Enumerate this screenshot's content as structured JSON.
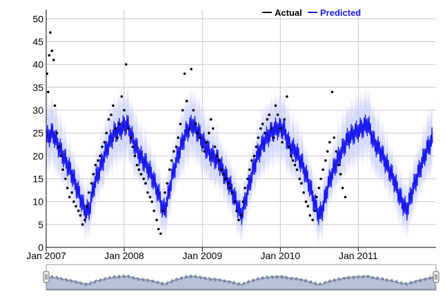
{
  "chart_data": {
    "type": "scatter",
    "title": "",
    "xlabel": "",
    "ylabel": "",
    "ylim": [
      0,
      52
    ],
    "xlim": [
      "2007-01-01",
      "2011-12-31"
    ],
    "grid": true,
    "legend_position": "top-right",
    "legend": [
      {
        "name": "Actual",
        "color": "#000000"
      },
      {
        "name": "Predicted",
        "color": "#1a1aee"
      }
    ],
    "y_ticks": [
      "0",
      "5",
      "10",
      "15",
      "20",
      "25",
      "30",
      "35",
      "40",
      "45",
      "50"
    ],
    "x_ticks": [
      {
        "label": "Jan 2007",
        "date": "2007-01-01"
      },
      {
        "label": "Jan 2008",
        "date": "2008-01-01"
      },
      {
        "label": "Jan 2009",
        "date": "2009-01-01"
      },
      {
        "label": "Jan 2010",
        "date": "2010-01-01"
      },
      {
        "label": "Jan 2011",
        "date": "2011-01-01"
      }
    ],
    "series": [
      {
        "name": "Actual",
        "kind": "points",
        "points": [
          [
            "2007-01-05",
            38
          ],
          [
            "2007-01-10",
            34
          ],
          [
            "2007-01-15",
            42
          ],
          [
            "2007-01-20",
            47
          ],
          [
            "2007-01-28",
            43
          ],
          [
            "2007-02-05",
            41
          ],
          [
            "2007-02-10",
            31
          ],
          [
            "2007-02-20",
            25
          ],
          [
            "2007-03-01",
            22
          ],
          [
            "2007-03-10",
            20
          ],
          [
            "2007-03-20",
            17
          ],
          [
            "2007-04-01",
            15
          ],
          [
            "2007-04-10",
            13
          ],
          [
            "2007-04-20",
            11
          ],
          [
            "2007-05-01",
            12
          ],
          [
            "2007-05-10",
            10
          ],
          [
            "2007-05-20",
            9
          ],
          [
            "2007-06-01",
            8
          ],
          [
            "2007-06-10",
            7
          ],
          [
            "2007-06-20",
            5
          ],
          [
            "2007-07-01",
            6
          ],
          [
            "2007-07-10",
            9
          ],
          [
            "2007-07-20",
            12
          ],
          [
            "2007-08-01",
            14
          ],
          [
            "2007-08-10",
            16
          ],
          [
            "2007-08-20",
            18
          ],
          [
            "2007-09-01",
            19
          ],
          [
            "2007-09-10",
            20
          ],
          [
            "2007-09-20",
            22
          ],
          [
            "2007-10-01",
            23
          ],
          [
            "2007-10-10",
            25
          ],
          [
            "2007-10-20",
            28
          ],
          [
            "2007-11-01",
            29
          ],
          [
            "2007-11-10",
            31
          ],
          [
            "2007-11-20",
            26
          ],
          [
            "2007-12-01",
            24
          ],
          [
            "2007-12-10",
            27
          ],
          [
            "2007-12-20",
            33
          ],
          [
            "2008-01-01",
            30
          ],
          [
            "2008-01-10",
            40
          ],
          [
            "2008-01-20",
            26
          ],
          [
            "2008-02-01",
            24
          ],
          [
            "2008-02-10",
            22
          ],
          [
            "2008-02-20",
            20
          ],
          [
            "2008-03-01",
            18
          ],
          [
            "2008-03-10",
            17
          ],
          [
            "2008-03-20",
            16
          ],
          [
            "2008-04-01",
            15
          ],
          [
            "2008-04-10",
            14
          ],
          [
            "2008-04-20",
            12
          ],
          [
            "2008-05-01",
            11
          ],
          [
            "2008-05-10",
            10
          ],
          [
            "2008-05-20",
            8
          ],
          [
            "2008-06-01",
            6
          ],
          [
            "2008-06-10",
            4
          ],
          [
            "2008-06-20",
            3
          ],
          [
            "2008-07-01",
            8
          ],
          [
            "2008-07-10",
            12
          ],
          [
            "2008-07-20",
            14
          ],
          [
            "2008-08-01",
            17
          ],
          [
            "2008-08-10",
            19
          ],
          [
            "2008-08-20",
            21
          ],
          [
            "2008-09-01",
            22
          ],
          [
            "2008-09-10",
            24
          ],
          [
            "2008-09-20",
            27
          ],
          [
            "2008-10-01",
            30
          ],
          [
            "2008-10-10",
            38
          ],
          [
            "2008-10-20",
            32
          ],
          [
            "2008-11-01",
            26
          ],
          [
            "2008-11-10",
            39
          ],
          [
            "2008-11-20",
            30
          ],
          [
            "2008-12-01",
            27
          ],
          [
            "2008-12-10",
            25
          ],
          [
            "2008-12-20",
            24
          ],
          [
            "2009-01-01",
            22
          ],
          [
            "2009-01-10",
            21
          ],
          [
            "2009-01-20",
            23
          ],
          [
            "2009-02-01",
            25
          ],
          [
            "2009-02-10",
            28
          ],
          [
            "2009-02-20",
            26
          ],
          [
            "2009-03-01",
            22
          ],
          [
            "2009-03-10",
            20
          ],
          [
            "2009-03-20",
            19
          ],
          [
            "2009-04-01",
            17
          ],
          [
            "2009-04-10",
            16
          ],
          [
            "2009-04-20",
            15
          ],
          [
            "2009-05-01",
            14
          ],
          [
            "2009-05-10",
            13
          ],
          [
            "2009-05-20",
            12
          ],
          [
            "2009-06-01",
            10
          ],
          [
            "2009-06-10",
            8
          ],
          [
            "2009-06-20",
            6
          ],
          [
            "2009-07-01",
            7
          ],
          [
            "2009-07-10",
            10
          ],
          [
            "2009-07-20",
            13
          ],
          [
            "2009-08-01",
            15
          ],
          [
            "2009-08-10",
            17
          ],
          [
            "2009-08-20",
            19
          ],
          [
            "2009-09-01",
            20
          ],
          [
            "2009-09-10",
            22
          ],
          [
            "2009-09-20",
            24
          ],
          [
            "2009-10-01",
            26
          ],
          [
            "2009-10-10",
            27
          ],
          [
            "2009-10-20",
            25
          ],
          [
            "2009-11-01",
            28
          ],
          [
            "2009-11-10",
            29
          ],
          [
            "2009-11-20",
            26
          ],
          [
            "2009-12-01",
            24
          ],
          [
            "2009-12-10",
            31
          ],
          [
            "2009-12-20",
            29
          ],
          [
            "2010-01-01",
            26
          ],
          [
            "2010-01-10",
            23
          ],
          [
            "2010-01-20",
            28
          ],
          [
            "2010-02-01",
            33
          ],
          [
            "2010-02-10",
            22
          ],
          [
            "2010-02-20",
            20
          ],
          [
            "2010-03-01",
            19
          ],
          [
            "2010-03-10",
            18
          ],
          [
            "2010-03-20",
            17
          ],
          [
            "2010-04-01",
            15
          ],
          [
            "2010-04-10",
            14
          ],
          [
            "2010-04-20",
            12
          ],
          [
            "2010-05-01",
            10
          ],
          [
            "2010-05-10",
            9
          ],
          [
            "2010-05-20",
            7
          ],
          [
            "2010-06-01",
            6
          ],
          [
            "2010-06-10",
            8
          ],
          [
            "2010-06-20",
            11
          ],
          [
            "2010-07-01",
            13
          ],
          [
            "2010-07-10",
            15
          ],
          [
            "2010-07-20",
            17
          ],
          [
            "2010-08-01",
            19
          ],
          [
            "2010-08-10",
            21
          ],
          [
            "2010-08-20",
            23
          ],
          [
            "2010-09-01",
            34
          ],
          [
            "2010-09-10",
            24
          ],
          [
            "2010-09-20",
            21
          ],
          [
            "2010-10-01",
            18
          ],
          [
            "2010-10-10",
            16
          ],
          [
            "2010-10-20",
            13
          ],
          [
            "2010-11-01",
            11
          ]
        ]
      },
      {
        "name": "Predicted",
        "kind": "line",
        "points": [
          [
            "2007-01-01",
            24
          ],
          [
            "2007-02-01",
            25
          ],
          [
            "2007-03-01",
            22
          ],
          [
            "2007-04-01",
            19
          ],
          [
            "2007-05-01",
            16
          ],
          [
            "2007-06-01",
            12
          ],
          [
            "2007-07-01",
            8
          ],
          [
            "2007-07-20",
            8
          ],
          [
            "2007-08-15",
            14
          ],
          [
            "2007-09-15",
            18
          ],
          [
            "2007-10-15",
            22
          ],
          [
            "2007-11-15",
            25
          ],
          [
            "2007-12-15",
            26
          ],
          [
            "2008-01-15",
            27
          ],
          [
            "2008-02-15",
            23
          ],
          [
            "2008-03-15",
            20
          ],
          [
            "2008-04-15",
            18
          ],
          [
            "2008-05-15",
            15
          ],
          [
            "2008-06-15",
            11
          ],
          [
            "2008-07-01",
            8
          ],
          [
            "2008-07-15",
            9
          ],
          [
            "2008-08-15",
            16
          ],
          [
            "2008-09-15",
            21
          ],
          [
            "2008-10-15",
            25
          ],
          [
            "2008-11-15",
            27
          ],
          [
            "2008-12-15",
            25
          ],
          [
            "2009-01-15",
            22
          ],
          [
            "2009-02-15",
            20
          ],
          [
            "2009-03-15",
            19
          ],
          [
            "2009-04-15",
            16
          ],
          [
            "2009-05-15",
            13
          ],
          [
            "2009-06-15",
            9
          ],
          [
            "2009-07-01",
            7
          ],
          [
            "2009-07-15",
            9
          ],
          [
            "2009-08-15",
            15
          ],
          [
            "2009-09-15",
            20
          ],
          [
            "2009-10-15",
            23
          ],
          [
            "2009-11-15",
            25
          ],
          [
            "2009-12-15",
            26
          ],
          [
            "2010-01-15",
            26
          ],
          [
            "2010-02-15",
            22
          ],
          [
            "2010-03-15",
            21
          ],
          [
            "2010-04-15",
            18
          ],
          [
            "2010-05-15",
            14
          ],
          [
            "2010-06-15",
            9
          ],
          [
            "2010-07-01",
            7
          ],
          [
            "2010-07-15",
            8
          ],
          [
            "2010-08-15",
            14
          ],
          [
            "2010-09-15",
            18
          ],
          [
            "2010-10-15",
            21
          ],
          [
            "2010-11-15",
            24
          ],
          [
            "2010-12-15",
            25
          ],
          [
            "2011-01-15",
            26
          ],
          [
            "2011-02-15",
            27
          ],
          [
            "2011-03-15",
            23
          ],
          [
            "2011-04-15",
            21
          ],
          [
            "2011-05-15",
            18
          ],
          [
            "2011-06-15",
            15
          ],
          [
            "2011-07-15",
            11
          ],
          [
            "2011-08-15",
            8
          ],
          [
            "2011-09-15",
            13
          ],
          [
            "2011-10-15",
            17
          ],
          [
            "2011-11-15",
            21
          ],
          [
            "2011-12-15",
            24
          ]
        ]
      }
    ]
  },
  "navigator": {
    "handle_left": "left-handle",
    "handle_right": "right-handle",
    "fill_color": "#b8c2d6",
    "line_color": "#6a7a99"
  }
}
